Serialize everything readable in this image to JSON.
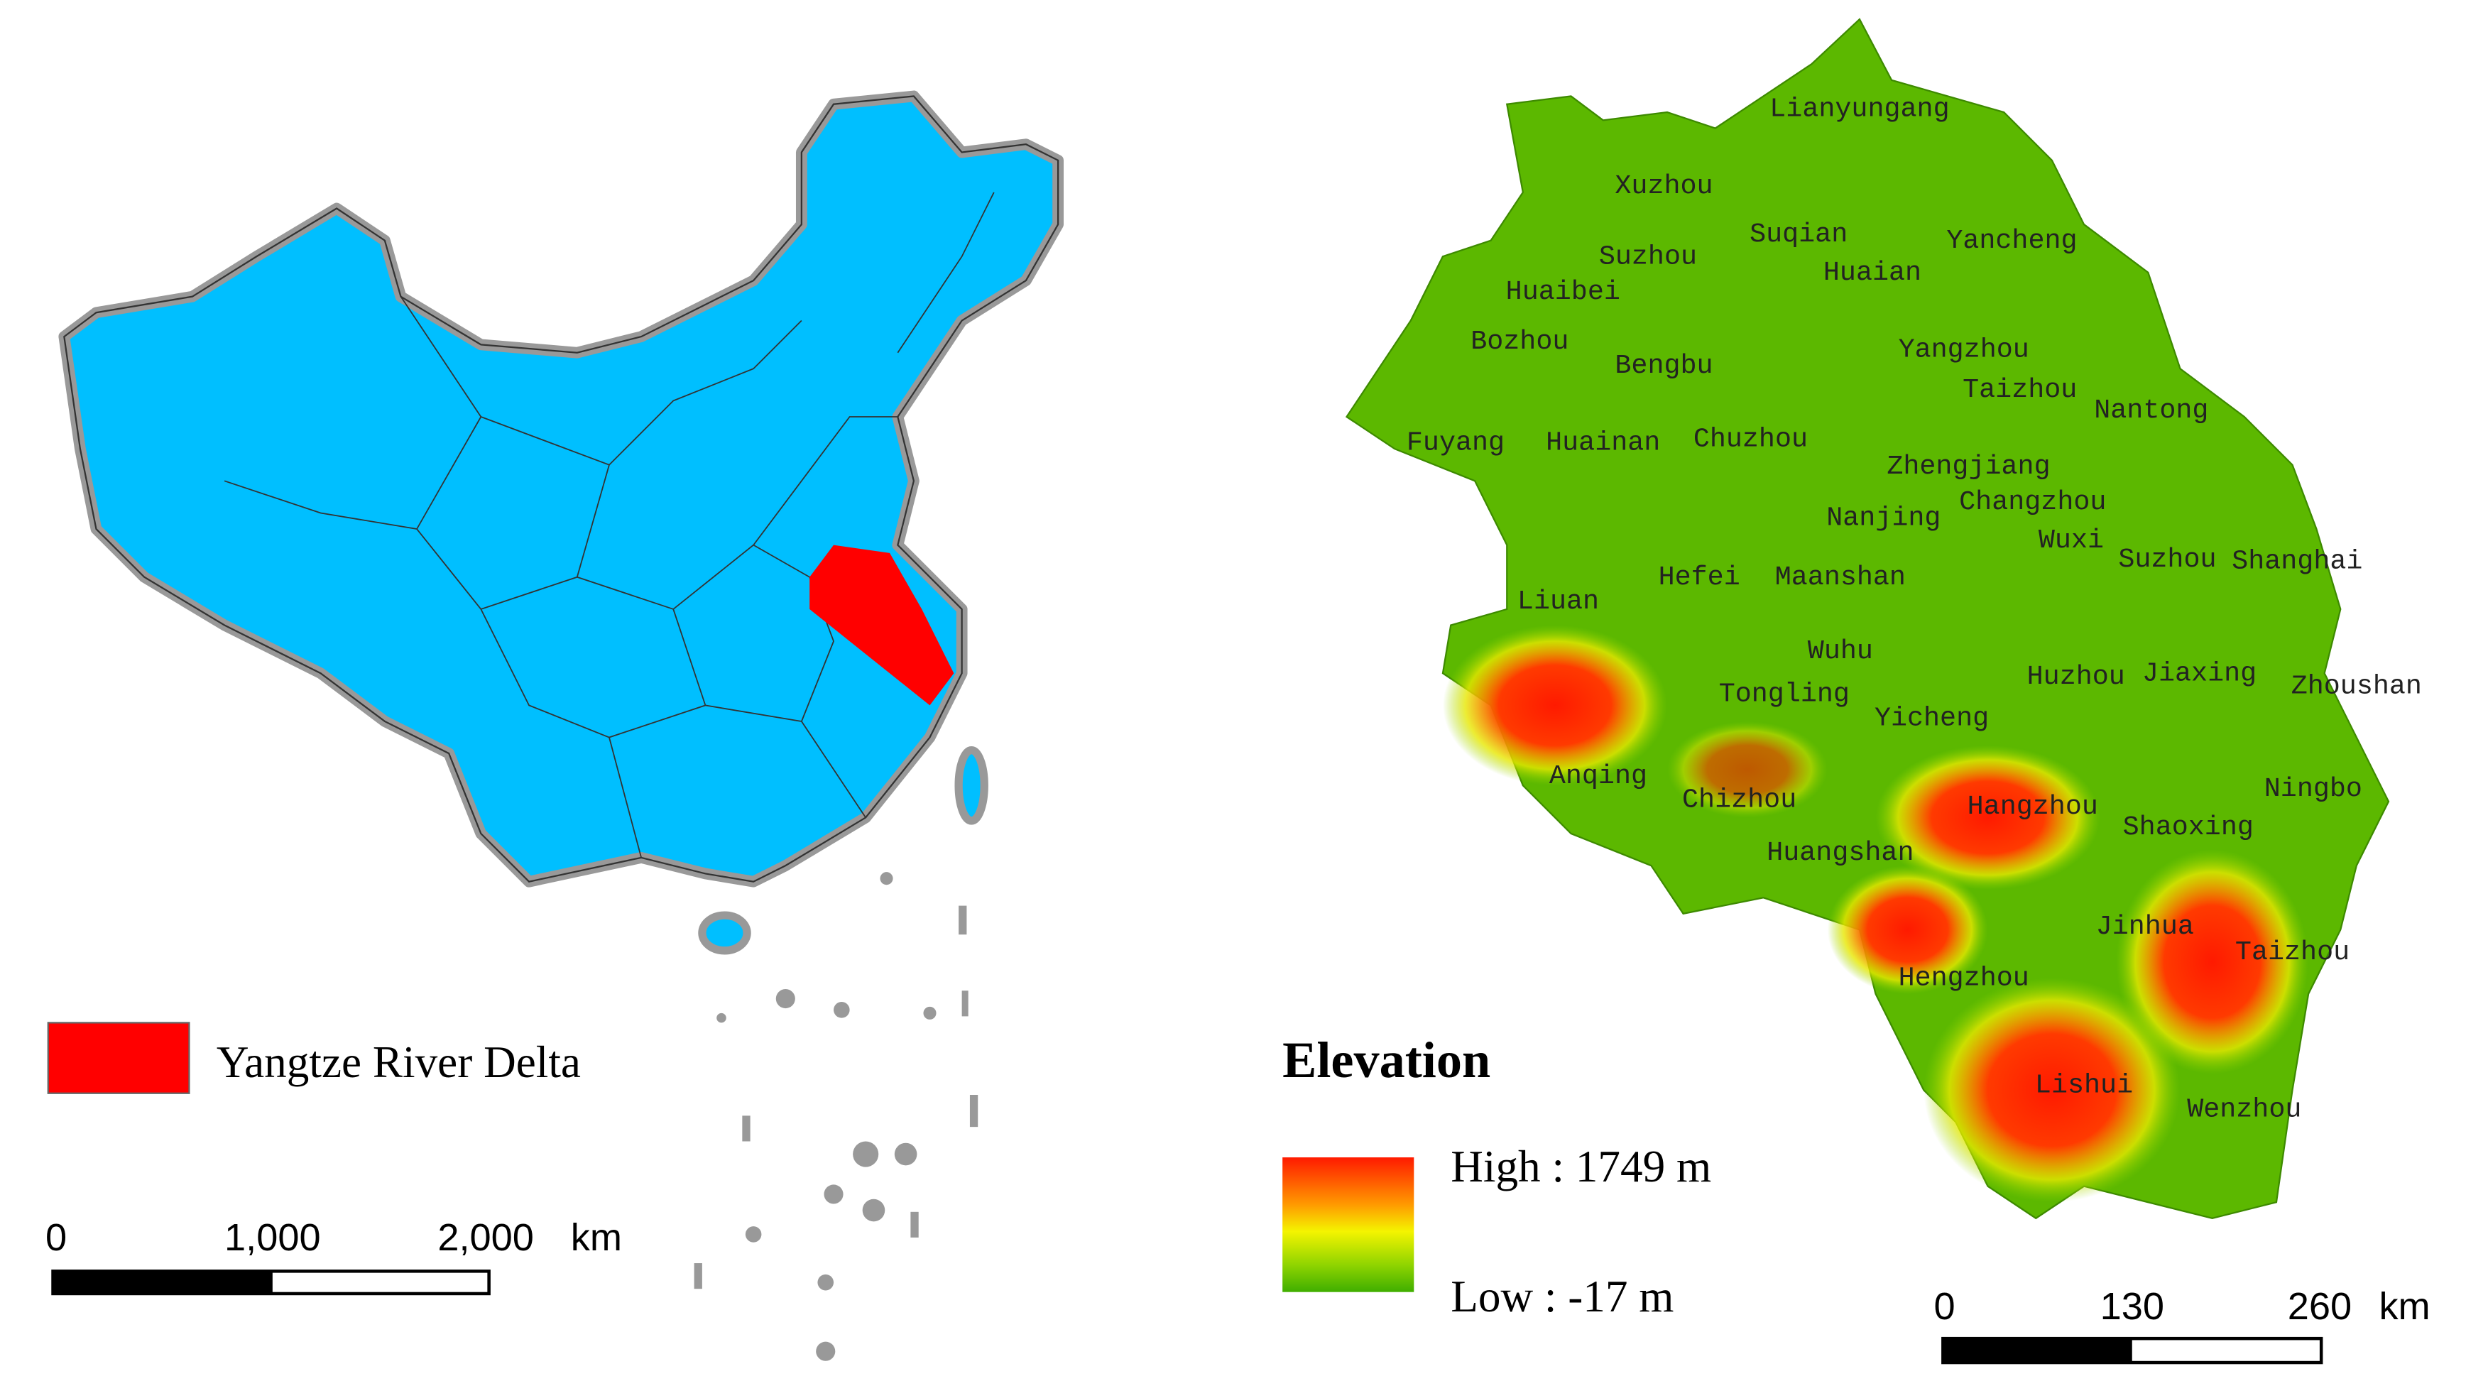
{
  "left_map": {
    "legend": {
      "label": "Yangtze River Delta"
    },
    "scale_bar": {
      "ticks": [
        "0",
        "1,000",
        "2,000"
      ],
      "unit": "km"
    }
  },
  "right_map": {
    "legend": {
      "title": "Elevation",
      "high": "High : 1749 m",
      "low": "Low : -17 m"
    },
    "scale_bar": {
      "ticks": [
        "0",
        "130",
        "260"
      ],
      "unit": "km"
    },
    "cities": [
      "Lianyungang",
      "Xuzhou",
      "Suqian",
      "Yancheng",
      "Suzhou",
      "Huaian",
      "Huaibei",
      "Bozhou",
      "Bengbu",
      "Yangzhou",
      "Taizhou",
      "Nantong",
      "Fuyang",
      "Huainan",
      "Chuzhou",
      "Zhengjiang",
      "Changzhou",
      "Nanjing",
      "Wuxi",
      "Suzhou",
      "Shanghai",
      "Liuan",
      "Hefei",
      "Maanshan",
      "Wuhu",
      "Huzhou",
      "Jiaxing",
      "Zhoushan",
      "Tongling",
      "Yicheng",
      "Anqing",
      "Chizhou",
      "Hangzhou",
      "Ningbo",
      "Shaoxing",
      "Huangshan",
      "Jinhua",
      "Taizhou",
      "Hengzhou",
      "Lishui",
      "Wenzhou"
    ]
  }
}
